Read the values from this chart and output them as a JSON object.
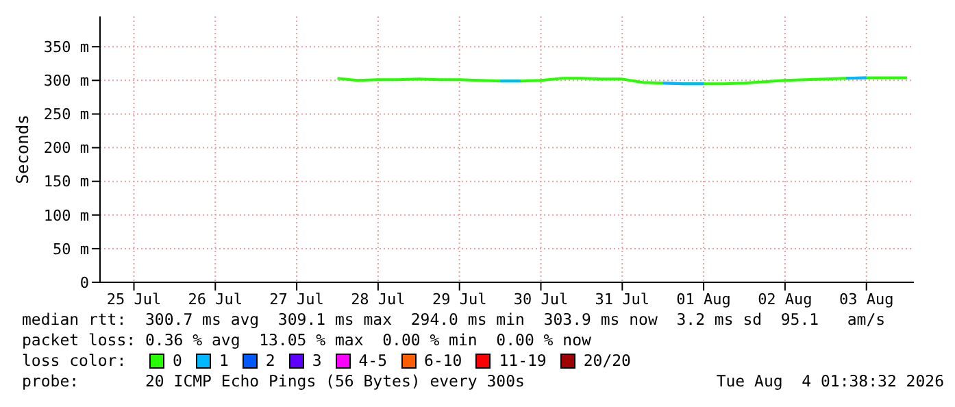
{
  "chart_data": {
    "type": "line",
    "ylabel": "Seconds",
    "legend_title": "loss color:",
    "legend": "bottom",
    "grid": true,
    "line_style": "solid",
    "marker": "none",
    "x": [
      "2026-07-28T00:00",
      "2026-07-28T06:00",
      "2026-07-28T12:00",
      "2026-07-28T18:00",
      "2026-07-29T00:00",
      "2026-07-29T06:00",
      "2026-07-29T12:00",
      "2026-07-29T18:00",
      "2026-07-30T00:00",
      "2026-07-30T06:00",
      "2026-07-30T12:00",
      "2026-07-30T18:00",
      "2026-07-31T00:00",
      "2026-07-31T06:00",
      "2026-07-31T12:00",
      "2026-07-31T18:00",
      "2026-08-01T00:00",
      "2026-08-01T06:00",
      "2026-08-01T12:00",
      "2026-08-01T18:00",
      "2026-08-02T00:00",
      "2026-08-02T06:00",
      "2026-08-02T12:00",
      "2026-08-02T18:00",
      "2026-08-03T00:00",
      "2026-08-03T06:00",
      "2026-08-03T12:00",
      "2026-08-03T18:00",
      "2026-08-04T00:00"
    ],
    "series": [
      {
        "name": "0",
        "color": "#26ff00",
        "values": [
          303,
          300,
          301,
          301,
          302,
          301,
          301,
          300,
          299,
          299,
          300,
          303,
          303,
          302,
          302,
          297,
          296,
          295,
          295,
          295,
          296,
          298,
          300,
          301,
          302,
          303,
          304,
          304,
          304
        ]
      },
      {
        "name": "1",
        "color": "#00b8ff",
        "values": [
          null,
          null,
          null,
          null,
          null,
          null,
          null,
          null,
          299,
          299,
          null,
          null,
          null,
          null,
          null,
          null,
          296,
          295,
          295,
          null,
          null,
          null,
          null,
          null,
          null,
          303,
          304,
          null,
          null
        ]
      },
      {
        "name": "2",
        "color": "#0059ff",
        "values": [
          null,
          null,
          null,
          null,
          null,
          null,
          null,
          null,
          null,
          null,
          null,
          null,
          null,
          null,
          null,
          null,
          null,
          null,
          null,
          null,
          null,
          null,
          null,
          null,
          null,
          null,
          null,
          null,
          null
        ]
      },
      {
        "name": "3",
        "color": "#5e00ff",
        "values": [
          null,
          null,
          null,
          null,
          null,
          null,
          null,
          null,
          null,
          null,
          null,
          null,
          null,
          null,
          null,
          null,
          null,
          null,
          null,
          null,
          null,
          null,
          null,
          null,
          null,
          null,
          null,
          null,
          null
        ]
      },
      {
        "name": "4-5",
        "color": "#ff00ff",
        "values": [
          null,
          null,
          null,
          null,
          null,
          null,
          null,
          null,
          null,
          null,
          null,
          null,
          null,
          null,
          null,
          null,
          null,
          null,
          null,
          null,
          null,
          null,
          null,
          null,
          null,
          null,
          null,
          null,
          null
        ]
      },
      {
        "name": "6-10",
        "color": "#ff5e00",
        "values": [
          null,
          null,
          null,
          null,
          null,
          null,
          null,
          null,
          null,
          null,
          null,
          null,
          null,
          null,
          null,
          null,
          null,
          null,
          null,
          null,
          null,
          null,
          null,
          null,
          null,
          null,
          null,
          null,
          null
        ]
      },
      {
        "name": "11-19",
        "color": "#ff0000",
        "values": [
          null,
          null,
          null,
          null,
          null,
          null,
          null,
          null,
          null,
          null,
          null,
          null,
          null,
          null,
          null,
          null,
          null,
          null,
          null,
          null,
          null,
          null,
          null,
          null,
          null,
          null,
          null,
          null,
          null
        ]
      },
      {
        "name": "20/20",
        "color": "#a10000",
        "values": [
          null,
          null,
          null,
          null,
          null,
          null,
          null,
          null,
          null,
          null,
          null,
          null,
          null,
          null,
          null,
          null,
          null,
          null,
          null,
          null,
          null,
          null,
          null,
          null,
          null,
          null,
          null,
          null,
          null
        ]
      }
    ],
    "xlim": [
      "2026-07-25T02:00",
      "2026-08-04T02:00"
    ],
    "xticks": [
      {
        "value": "2026-07-25T12:00",
        "label": "25 Jul"
      },
      {
        "value": "2026-07-26T12:00",
        "label": "26 Jul"
      },
      {
        "value": "2026-07-27T12:00",
        "label": "27 Jul"
      },
      {
        "value": "2026-07-28T12:00",
        "label": "28 Jul"
      },
      {
        "value": "2026-07-29T12:00",
        "label": "29 Jul"
      },
      {
        "value": "2026-07-30T12:00",
        "label": "30 Jul"
      },
      {
        "value": "2026-07-31T12:00",
        "label": "31 Jul"
      },
      {
        "value": "2026-08-01T12:00",
        "label": "01 Aug"
      },
      {
        "value": "2026-08-02T12:00",
        "label": "02 Aug"
      },
      {
        "value": "2026-08-03T12:00",
        "label": "03 Aug"
      }
    ],
    "ylim": [
      0,
      395
    ],
    "yticks": [
      0,
      {
        "value": 50,
        "label": "50 m"
      },
      {
        "value": 100,
        "label": "100 m"
      },
      {
        "value": 150,
        "label": "150 m"
      },
      {
        "value": 200,
        "label": "200 m"
      },
      {
        "value": 250,
        "label": "250 m"
      },
      {
        "value": 300,
        "label": "300 m"
      },
      {
        "value": 350,
        "label": "350 m"
      }
    ],
    "annotations": [
      "median rtt:  300.7 ms avg  309.1 ms max  294.0 ms min  303.9 ms now  3.2 ms sd  95.1   am/s",
      "packet loss: 0.36 % avg  13.05 % max  0.00 % min  0.00 % now",
      "probe:       20 ICMP Echo Pings (56 Bytes) every 300s",
      "Tue Aug  4 01:38:32 2026"
    ]
  }
}
